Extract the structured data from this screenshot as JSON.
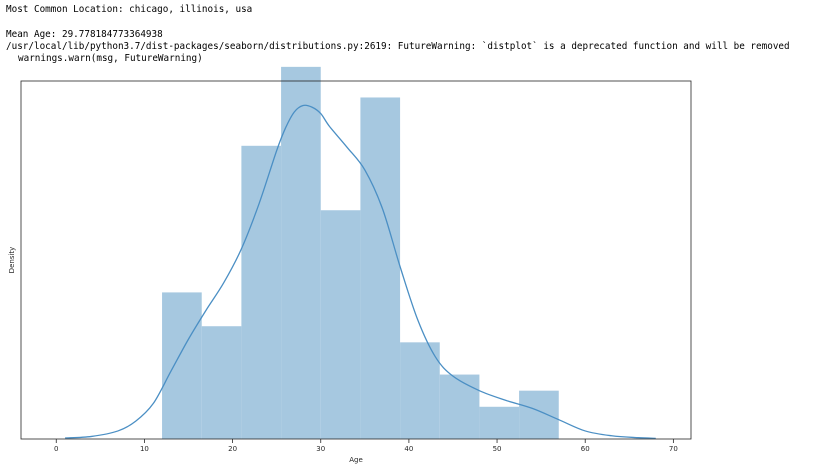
{
  "output": {
    "location_line": "Most Common Location: chicago, illinois, usa",
    "mean_line": "Mean Age: 29.778184773364938",
    "warning_line": "/usr/local/lib/python3.7/dist-packages/seaborn/distributions.py:2619: FutureWarning: `distplot` is a deprecated function and will be removed",
    "warn_call_line": "warnings.warn(msg, FutureWarning)"
  },
  "colors": {
    "bar_fill": "#a6c8e0",
    "kde_line": "#4b8fc4",
    "axis": "#262626"
  },
  "chart_data": {
    "type": "histogram",
    "xlabel": "Age",
    "ylabel": "Density",
    "xlim": [
      -4,
      72
    ],
    "ylim": [
      0,
      0.1
    ],
    "xticks": [
      0,
      10,
      20,
      30,
      40,
      50,
      60,
      70
    ],
    "xtick_labels": [
      "0",
      "10",
      "20",
      "30",
      "40",
      "50",
      "60",
      "70"
    ],
    "show_yticks": false,
    "grid": false,
    "bins": [
      {
        "x0": 12.0,
        "x1": 16.5,
        "density": 0.0455
      },
      {
        "x0": 16.5,
        "x1": 21.0,
        "density": 0.035
      },
      {
        "x0": 21.0,
        "x1": 25.5,
        "density": 0.091
      },
      {
        "x0": 25.5,
        "x1": 30.0,
        "density": 0.1155
      },
      {
        "x0": 30.0,
        "x1": 34.5,
        "density": 0.071
      },
      {
        "x0": 34.5,
        "x1": 39.0,
        "density": 0.106
      },
      {
        "x0": 39.0,
        "x1": 43.5,
        "density": 0.03
      },
      {
        "x0": 43.5,
        "x1": 48.0,
        "density": 0.02
      },
      {
        "x0": 48.0,
        "x1": 52.5,
        "density": 0.01
      },
      {
        "x0": 52.5,
        "x1": 57.0,
        "density": 0.015
      }
    ],
    "kde": {
      "x": [
        1,
        4,
        7,
        9,
        11,
        13,
        15,
        17,
        19,
        21,
        23,
        25,
        26,
        27,
        28,
        29,
        30,
        31,
        33,
        35,
        37,
        39,
        41,
        43,
        45,
        48,
        51,
        54,
        57,
        60,
        63,
        66,
        68
      ],
      "y": [
        0.0003,
        0.0008,
        0.0025,
        0.0055,
        0.011,
        0.021,
        0.031,
        0.04,
        0.0485,
        0.059,
        0.073,
        0.0895,
        0.0965,
        0.1015,
        0.1035,
        0.103,
        0.101,
        0.097,
        0.0905,
        0.0835,
        0.0715,
        0.0535,
        0.037,
        0.0255,
        0.0195,
        0.015,
        0.012,
        0.0095,
        0.006,
        0.0025,
        0.001,
        0.0004,
        0.0002
      ]
    }
  }
}
